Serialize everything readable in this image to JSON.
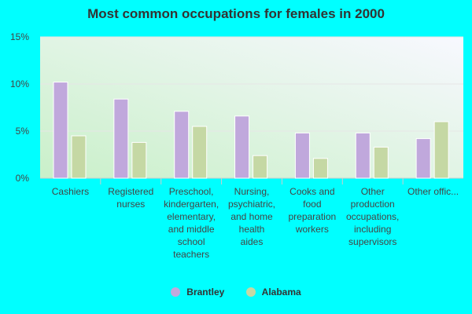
{
  "chart_data": {
    "type": "bar",
    "title": "Most common occupations for females in 2000",
    "categories": [
      "Cashiers",
      "Registered nurses",
      "Preschool, kindergarten, elementary, and middle school teachers",
      "Nursing, psychiatric, and home health aides",
      "Cooks and food preparation workers",
      "Other production occupations, including supervisors",
      "Other offic..."
    ],
    "category_display": [
      [
        "Cashiers"
      ],
      [
        "Registered",
        "nurses"
      ],
      [
        "Preschool,",
        "kindergarten,",
        "elementary,",
        "and middle",
        "school",
        "teachers"
      ],
      [
        "Nursing,",
        "psychiatric,",
        "and home",
        "health",
        "aides"
      ],
      [
        "Cooks and",
        "food",
        "preparation",
        "workers"
      ],
      [
        "Other",
        "production",
        "occupations,",
        "including",
        "supervisors"
      ],
      [
        "Other offic..."
      ]
    ],
    "series": [
      {
        "name": "Brantley",
        "values": [
          10.2,
          8.4,
          7.1,
          6.6,
          4.8,
          4.8,
          4.2
        ],
        "color": "#c0a8dc"
      },
      {
        "name": "Alabama",
        "values": [
          4.5,
          3.8,
          5.5,
          2.4,
          2.1,
          3.3,
          6.0
        ],
        "color": "#c5d8a4"
      }
    ],
    "yticks": [
      "0%",
      "5%",
      "10%",
      "15%"
    ],
    "ylim": [
      0,
      15
    ],
    "grid": true,
    "legend_position": "bottom-center"
  }
}
